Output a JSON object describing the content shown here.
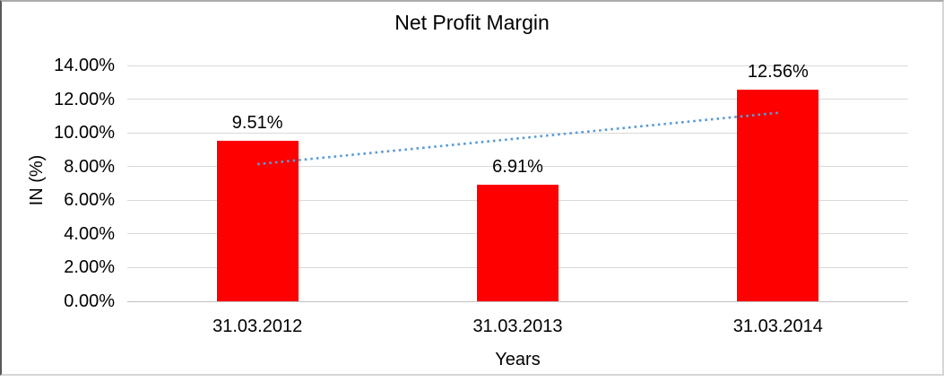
{
  "chart_data": {
    "type": "bar",
    "title": "Net Profit Margin",
    "xlabel": "Years",
    "ylabel": "IN (%)",
    "categories": [
      "31.03.2012",
      "31.03.2013",
      "31.03.2014"
    ],
    "series": [
      {
        "name": "Net Profit Margin",
        "values": [
          9.51,
          6.91,
          12.56
        ],
        "value_labels": [
          "9.51%",
          "6.91%",
          "12.56%"
        ]
      }
    ],
    "ylim": [
      0,
      14
    ],
    "ytick_step": 2,
    "ytick_labels": [
      "0.00%",
      "2.00%",
      "4.00%",
      "6.00%",
      "8.00%",
      "10.00%",
      "12.00%",
      "14.00%"
    ],
    "grid": true,
    "legend_position": "none",
    "bar_color": "#fe0000",
    "gridline_color": "#d9d9d9",
    "baseline_color": "#c2c2c2",
    "text_color": "#000000",
    "trendline": {
      "type": "linear",
      "style": "dotted",
      "color": "#5b9bd5",
      "start_value": 8.14,
      "end_value": 11.19
    }
  }
}
